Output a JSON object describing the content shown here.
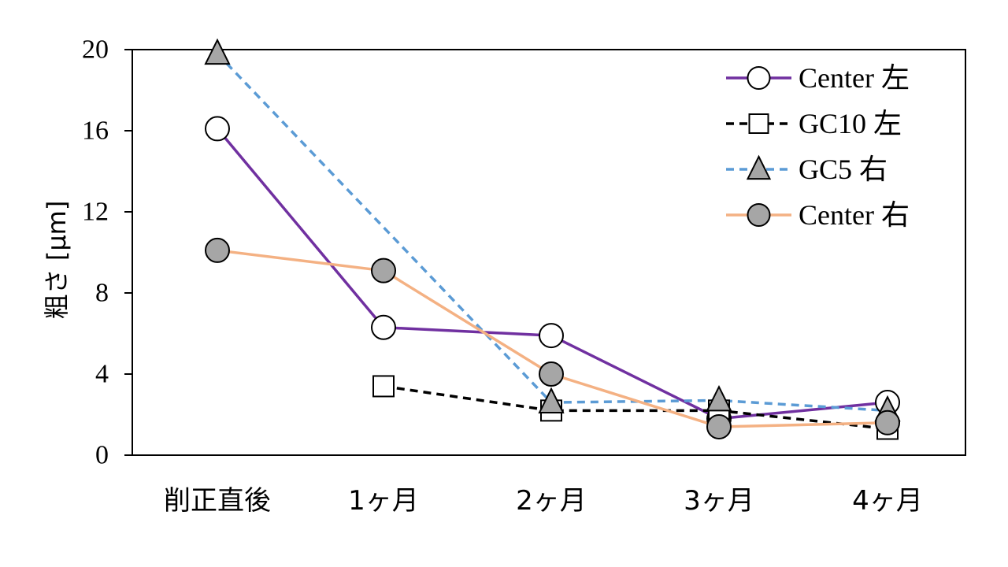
{
  "chart_data": {
    "type": "line",
    "ylabel": "粗さ [μm]",
    "xlabel": "",
    "categories": [
      "削正直後",
      "1ヶ月",
      "2ヶ月",
      "3ヶ月",
      "4ヶ月"
    ],
    "ylim": [
      0,
      20
    ],
    "yticks": [
      "0",
      "4",
      "8",
      "12",
      "16",
      "20"
    ],
    "grid": false,
    "legend_position": "top-right",
    "series": [
      {
        "name": "Center 左",
        "values": [
          16.1,
          6.3,
          5.9,
          1.8,
          2.6
        ],
        "color": "#7030a0",
        "dash": "solid",
        "marker": "circle",
        "marker_fill": "#ffffff"
      },
      {
        "name": "GC10 左",
        "values": [
          null,
          3.4,
          2.2,
          2.2,
          1.3
        ],
        "color": "#000000",
        "dash": "dashed",
        "marker": "square",
        "marker_fill": "#ffffff"
      },
      {
        "name": "GC5 右",
        "values": [
          19.8,
          null,
          2.6,
          2.7,
          2.2
        ],
        "color": "#5b9bd5",
        "dash": "dashed",
        "marker": "triangle",
        "marker_fill": "#a6a6a6"
      },
      {
        "name": "Center 右",
        "values": [
          10.1,
          9.1,
          4.0,
          1.4,
          1.6
        ],
        "color": "#f4b183",
        "dash": "solid",
        "marker": "circle",
        "marker_fill": "#a6a6a6"
      }
    ]
  }
}
